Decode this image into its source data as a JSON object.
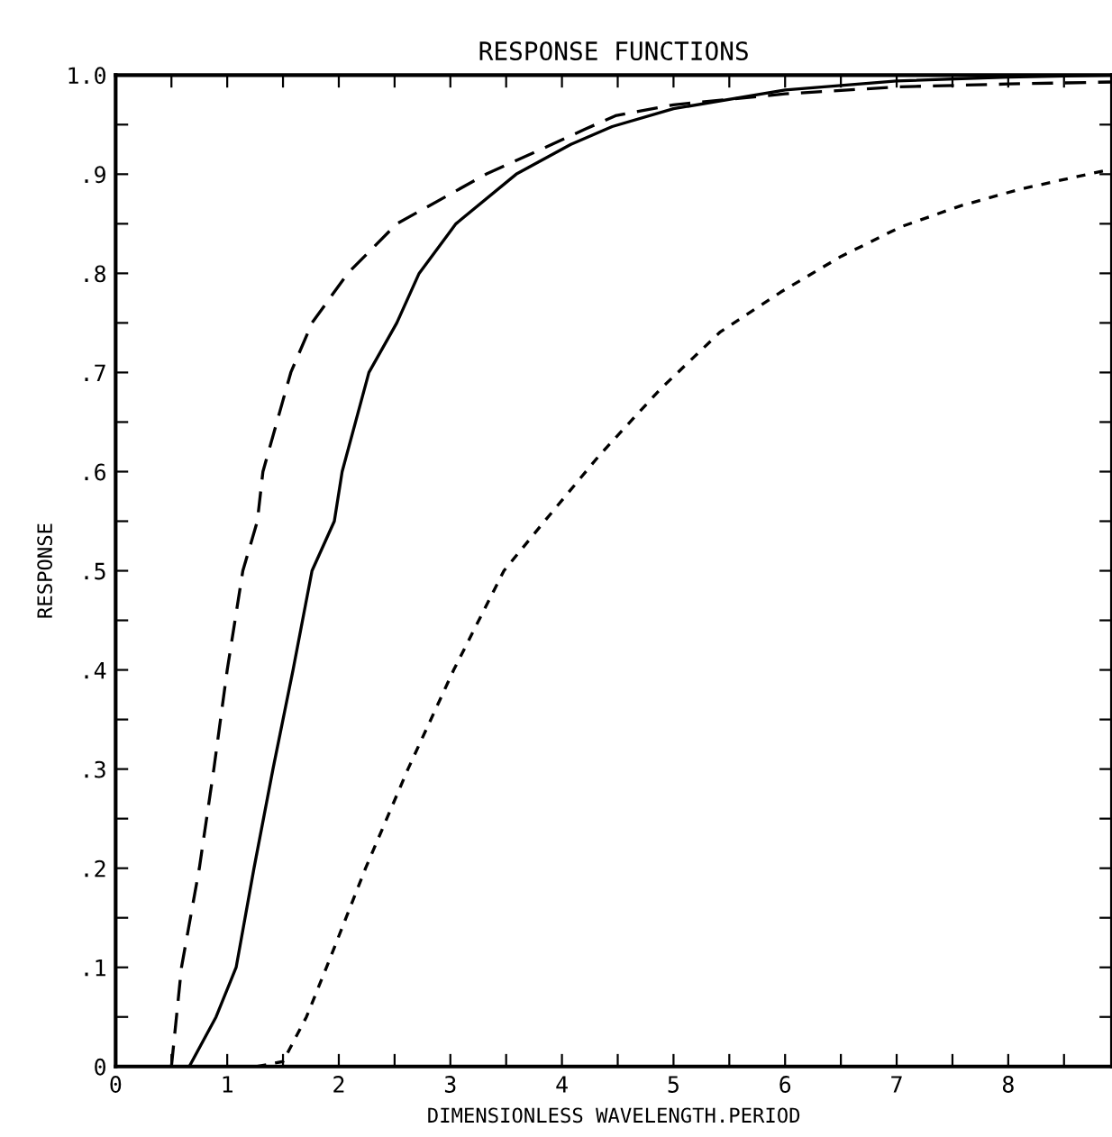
{
  "chart_data": {
    "type": "line",
    "title": "RESPONSE FUNCTIONS",
    "xlabel": "DIMENSIONLESS WAVELENGTH.PERIOD",
    "ylabel": "RESPONSE",
    "xlim": [
      0,
      8.93
    ],
    "ylim": [
      0,
      1.0
    ],
    "xticks": [
      0,
      {
        "value": 0.5,
        "label": null
      },
      1,
      {
        "value": 1.5,
        "label": null
      },
      2,
      {
        "value": 2.5,
        "label": null
      },
      3,
      {
        "value": 3.5,
        "label": null
      },
      4,
      {
        "value": 4.5,
        "label": null
      },
      5,
      {
        "value": 5.5,
        "label": null
      },
      6,
      {
        "value": 6.5,
        "label": null
      },
      7,
      {
        "value": 7.5,
        "label": null
      },
      8,
      {
        "value": 8.5,
        "label": null
      }
    ],
    "yticks": [
      0,
      {
        "value": 0.05,
        "label": null
      },
      {
        "value": 0.1,
        "label": ".1"
      },
      {
        "value": 0.15,
        "label": null
      },
      {
        "value": 0.2,
        "label": ".2"
      },
      {
        "value": 0.25,
        "label": null
      },
      {
        "value": 0.3,
        "label": ".3"
      },
      {
        "value": 0.35,
        "label": null
      },
      {
        "value": 0.4,
        "label": ".4"
      },
      {
        "value": 0.45,
        "label": null
      },
      {
        "value": 0.5,
        "label": ".5"
      },
      {
        "value": 0.55,
        "label": null
      },
      {
        "value": 0.6,
        "label": ".6"
      },
      {
        "value": 0.65,
        "label": null
      },
      {
        "value": 0.7,
        "label": ".7"
      },
      {
        "value": 0.75,
        "label": null
      },
      {
        "value": 0.8,
        "label": ".8"
      },
      {
        "value": 0.85,
        "label": null
      },
      {
        "value": 0.9,
        "label": ".9"
      },
      {
        "value": 0.95,
        "label": null
      },
      {
        "value": 1.0,
        "label": "1.0"
      }
    ],
    "grid": false,
    "marker": "none",
    "series": [
      {
        "color": "#000000",
        "line_style": "dashed",
        "x": [
          0.5,
          0.59,
          0.75,
          0.88,
          1.0,
          1.14,
          1.27,
          1.32,
          1.57,
          1.76,
          2.08,
          2.52,
          3.32,
          3.91,
          4.2,
          4.48,
          5.0,
          6.0,
          7.0,
          8.0,
          8.93
        ],
        "values": [
          0,
          0.1,
          0.2,
          0.3,
          0.4,
          0.5,
          0.55,
          0.6,
          0.7,
          0.75,
          0.8,
          0.85,
          0.9,
          0.93,
          0.945,
          0.959,
          0.97,
          0.981,
          0.988,
          0.991,
          0.993
        ]
      },
      {
        "color": "#000000",
        "line_style": "solid",
        "x": [
          0.66,
          0.9,
          1.08,
          1.24,
          1.41,
          1.59,
          1.76,
          1.96,
          2.03,
          2.27,
          2.52,
          2.72,
          3.05,
          3.59,
          4.08,
          4.45,
          5.0,
          6.0,
          7.0,
          8.0,
          8.93
        ],
        "values": [
          0,
          0.05,
          0.1,
          0.2,
          0.3,
          0.4,
          0.5,
          0.55,
          0.6,
          0.7,
          0.75,
          0.8,
          0.85,
          0.9,
          0.93,
          0.948,
          0.966,
          0.985,
          0.994,
          0.998,
          1.0
        ]
      },
      {
        "color": "#000000",
        "line_style": "dotted",
        "x": [
          1.27,
          1.5,
          1.71,
          1.89,
          2.24,
          2.62,
          3.03,
          3.48,
          3.8,
          4.34,
          4.88,
          5.42,
          5.96,
          6.5,
          7.04,
          7.57,
          8.11,
          8.92
        ],
        "values": [
          0,
          0.005,
          0.05,
          0.1,
          0.2,
          0.3,
          0.4,
          0.5,
          0.544,
          0.617,
          0.683,
          0.741,
          0.781,
          0.817,
          0.847,
          0.868,
          0.885,
          0.905
        ]
      }
    ]
  }
}
